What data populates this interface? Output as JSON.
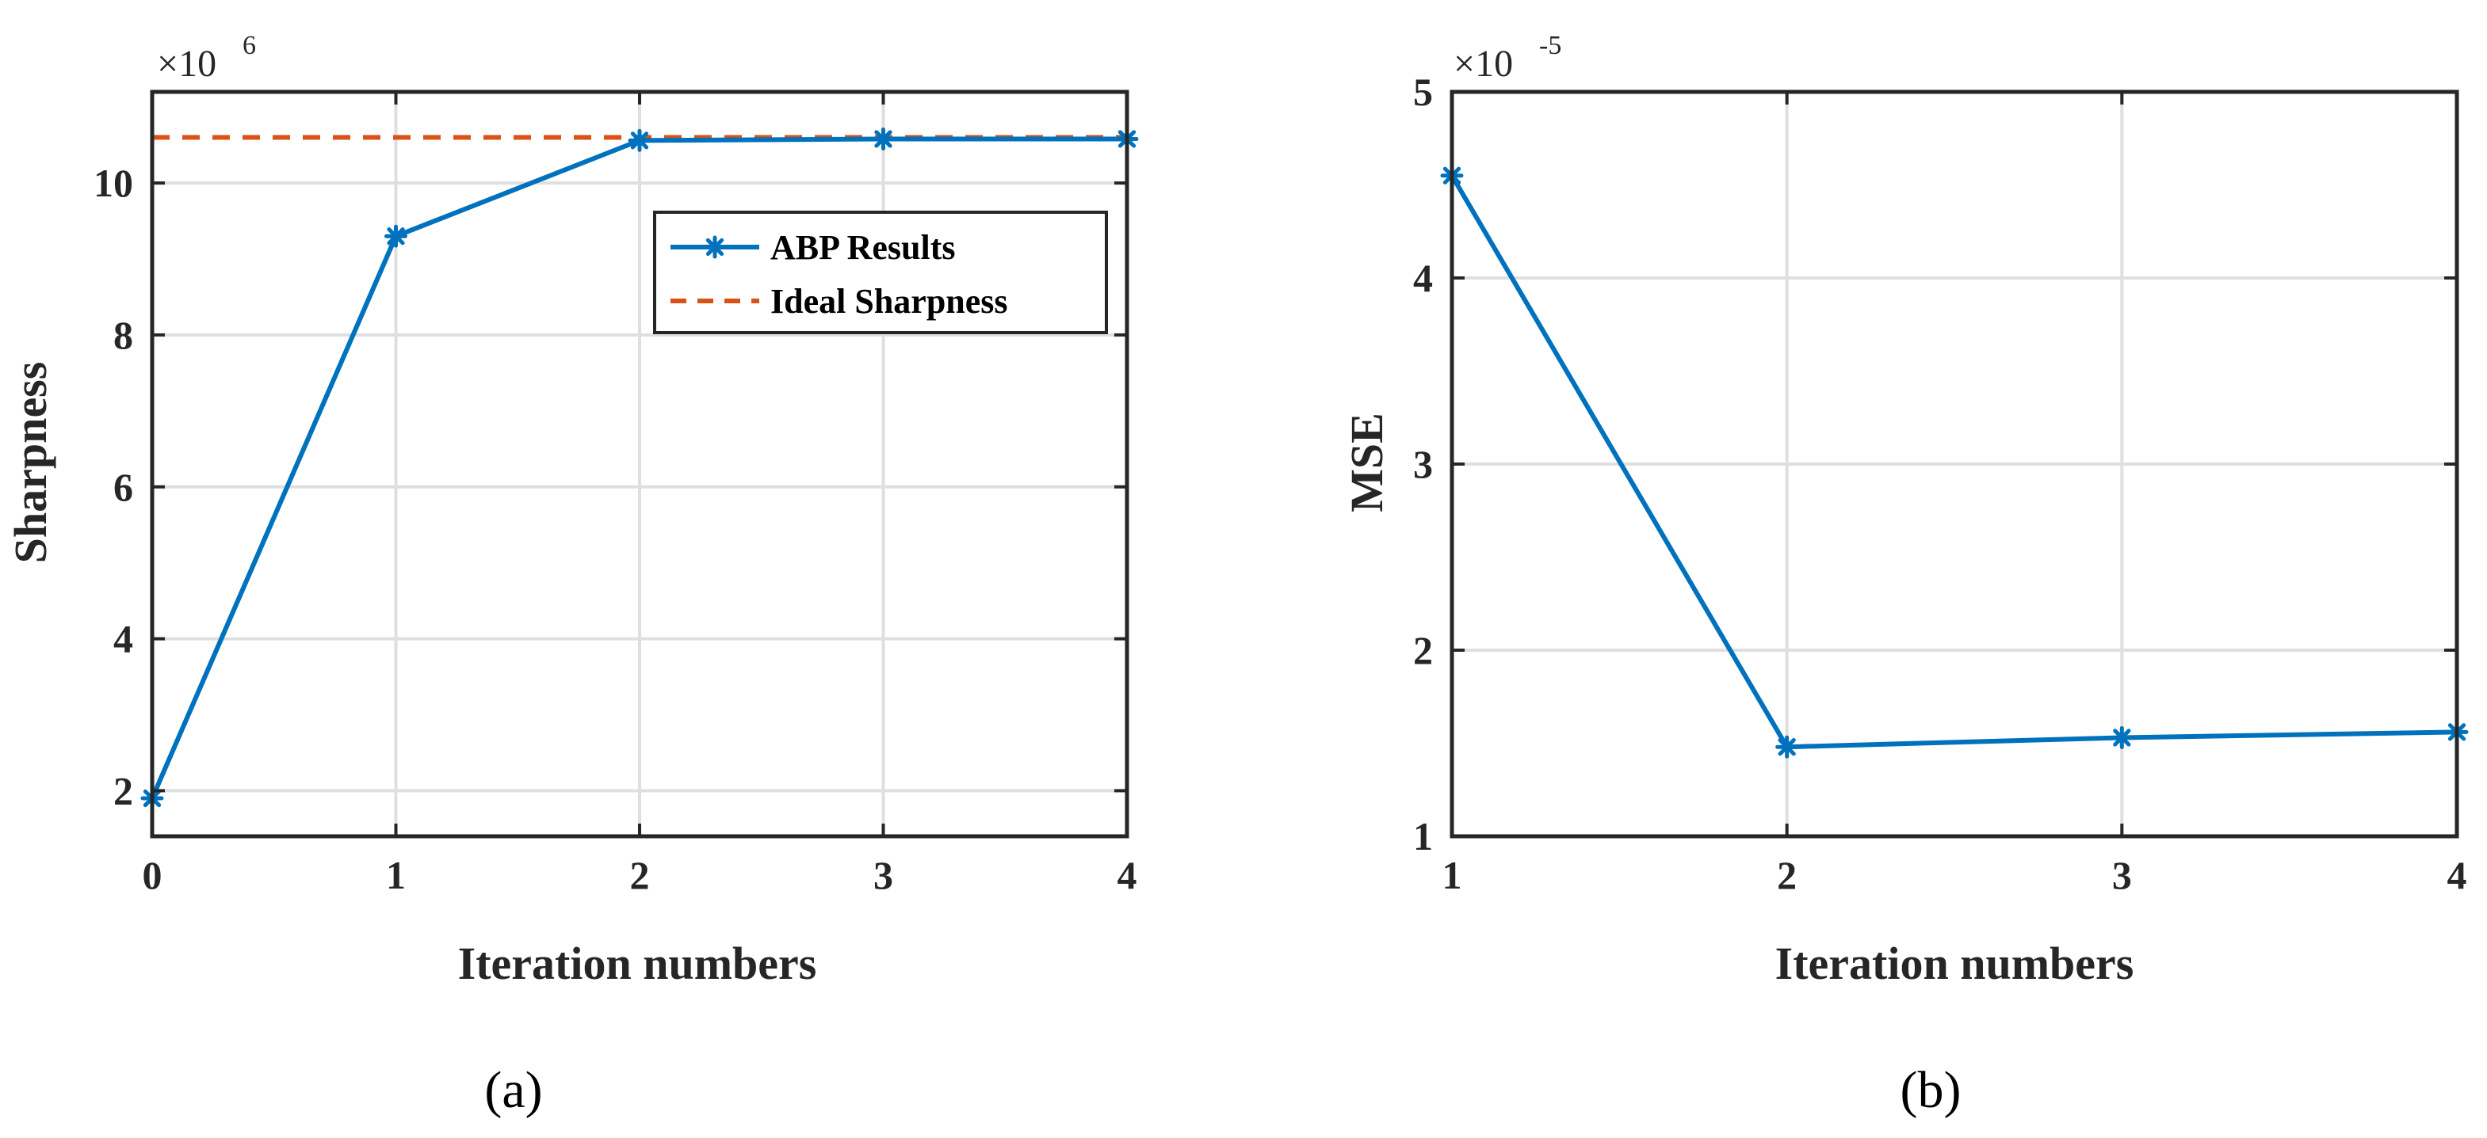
{
  "colors": {
    "series": "#0072BD",
    "ideal": "#D95319",
    "axis": "#262626",
    "grid": "#DFDFDF"
  },
  "chart_data": [
    {
      "type": "line",
      "caption": "(a)",
      "xlabel": "Iteration numbers",
      "ylabel": "Sharpness",
      "multiplier_base": "×10",
      "multiplier_exp": "6",
      "xlim": [
        0,
        4
      ],
      "ylim": [
        1.4,
        11.2
      ],
      "xticks": [
        0,
        1,
        2,
        3,
        4
      ],
      "yticks": [
        2,
        4,
        6,
        8,
        10
      ],
      "grid": true,
      "legend_position": "top-right",
      "series": [
        {
          "name": "ABP Results",
          "x": [
            0,
            1,
            2,
            3,
            4
          ],
          "y": [
            1.9,
            9.3,
            10.56,
            10.58,
            10.58
          ],
          "style": "solid",
          "marker": "asterisk",
          "color": "#0072BD"
        },
        {
          "name": "Ideal Sharpness",
          "x": [
            0,
            4
          ],
          "y": [
            10.6,
            10.6
          ],
          "style": "dashed",
          "marker": "none",
          "color": "#D95319"
        }
      ]
    },
    {
      "type": "line",
      "caption": "(b)",
      "xlabel": "Iteration numbers",
      "ylabel": "MSE",
      "multiplier_base": "×10",
      "multiplier_exp": "-5",
      "xlim": [
        1,
        4
      ],
      "ylim": [
        1,
        5
      ],
      "xticks": [
        1,
        2,
        3,
        4
      ],
      "yticks": [
        1,
        2,
        3,
        4,
        5
      ],
      "grid": true,
      "series": [
        {
          "x": [
            1,
            2,
            3,
            4
          ],
          "y": [
            4.55,
            1.48,
            1.53,
            1.56
          ],
          "style": "solid",
          "marker": "asterisk",
          "color": "#0072BD"
        }
      ]
    }
  ]
}
